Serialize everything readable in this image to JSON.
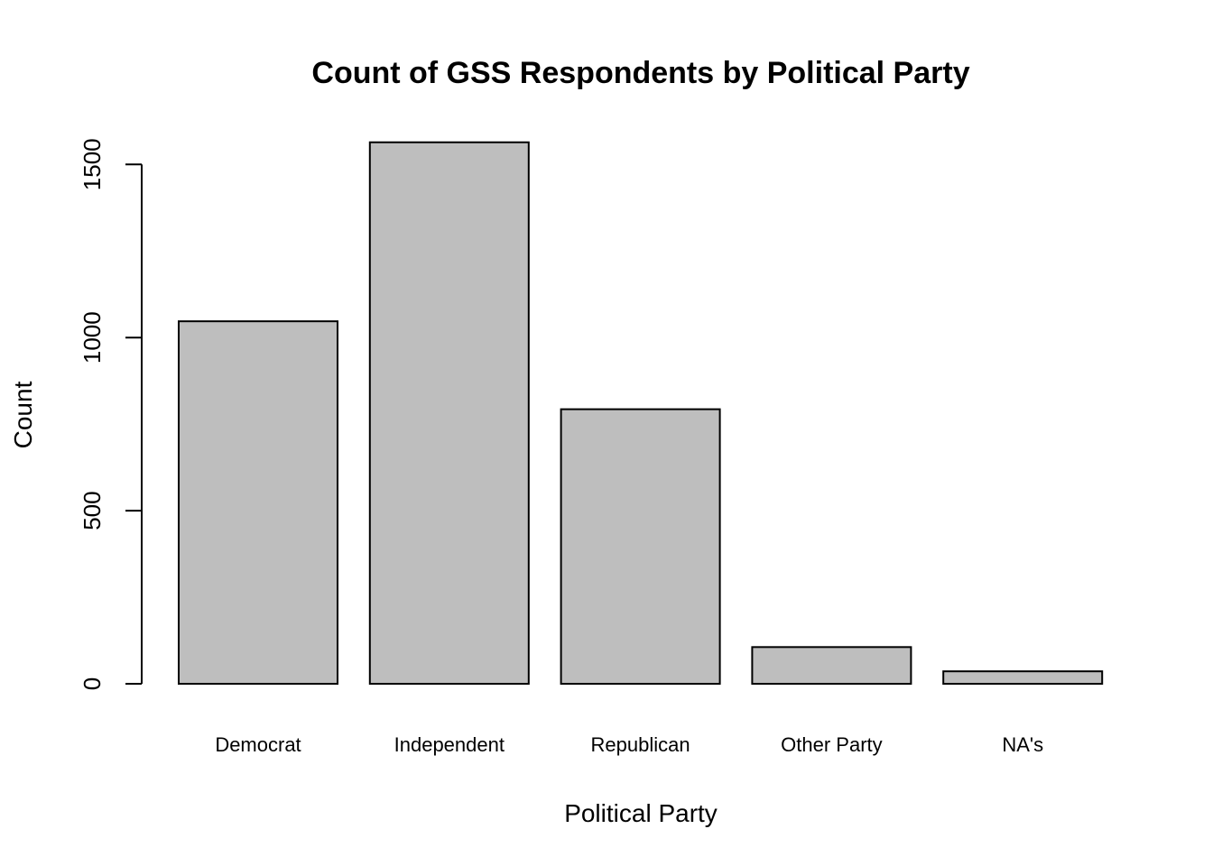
{
  "chart_data": {
    "type": "bar",
    "title": "Count of GSS Respondents by Political Party",
    "xlabel": "Political Party",
    "ylabel": "Count",
    "categories": [
      "Democrat",
      "Independent",
      "Republican",
      "Other Party",
      "NA's"
    ],
    "values": [
      1047,
      1564,
      793,
      106,
      36
    ],
    "yticks": [
      0,
      500,
      1000,
      1500
    ],
    "ylim": [
      0,
      1564
    ],
    "grid": false,
    "legend": "none",
    "colors": {
      "bar_fill": "#bebebe",
      "bar_stroke": "#000000"
    }
  }
}
